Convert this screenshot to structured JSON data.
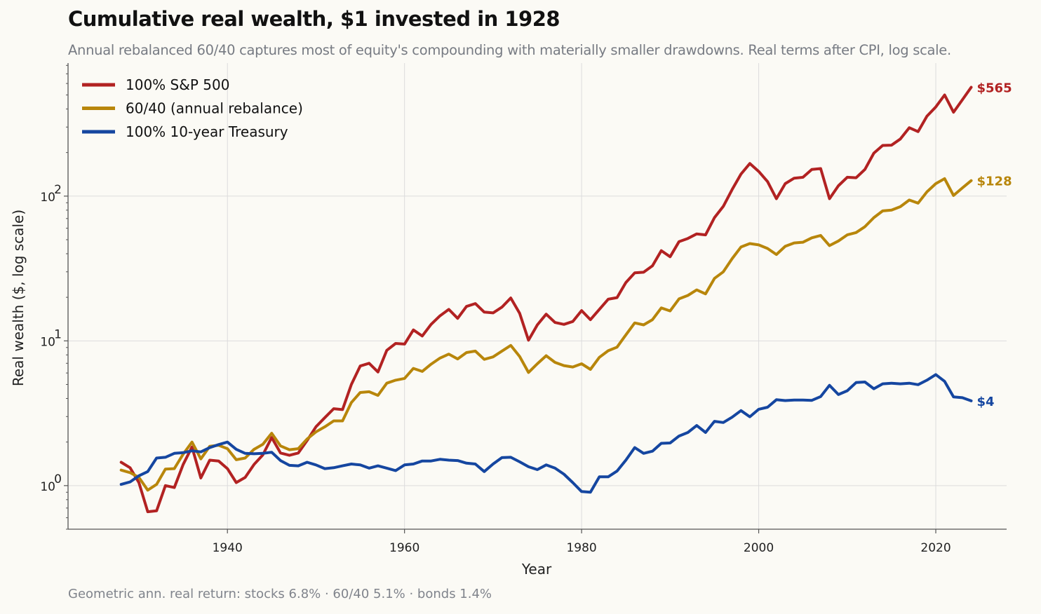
{
  "chart_data": {
    "type": "line",
    "title": "Cumulative real wealth, $1 invested in 1928",
    "subtitle": "Annual rebalanced 60/40 captures most of equity's compounding with materially smaller drawdowns. Real terms after CPI, log scale.",
    "xlabel": "Year",
    "ylabel": "Real wealth ($, log scale)",
    "footnote": "Geometric ann. real return: stocks 6.8%  ·  60/40 5.1%  ·  bonds 1.4%",
    "y_scale": "log",
    "xlim": [
      1922,
      2028
    ],
    "ylim": [
      0.5,
      830
    ],
    "x_ticks": [
      1940,
      1960,
      1980,
      2000,
      2020
    ],
    "y_ticks": [
      1,
      10,
      100
    ],
    "y_tick_labels": [
      [
        "10",
        "0"
      ],
      [
        "10",
        "1"
      ],
      [
        "10",
        "2"
      ]
    ],
    "grid": true,
    "legend_position": "top-left",
    "x": [
      1928,
      1929,
      1930,
      1931,
      1932,
      1933,
      1934,
      1935,
      1936,
      1937,
      1938,
      1939,
      1940,
      1941,
      1942,
      1943,
      1944,
      1945,
      1946,
      1947,
      1948,
      1949,
      1950,
      1951,
      1952,
      1953,
      1954,
      1955,
      1956,
      1957,
      1958,
      1959,
      1960,
      1961,
      1962,
      1963,
      1964,
      1965,
      1966,
      1967,
      1968,
      1969,
      1970,
      1971,
      1972,
      1973,
      1974,
      1975,
      1976,
      1977,
      1978,
      1979,
      1980,
      1981,
      1982,
      1983,
      1984,
      1985,
      1986,
      1987,
      1988,
      1989,
      1990,
      1991,
      1992,
      1993,
      1994,
      1995,
      1996,
      1997,
      1998,
      1999,
      2000,
      2001,
      2002,
      2003,
      2004,
      2005,
      2006,
      2007,
      2008,
      2009,
      2010,
      2011,
      2012,
      2013,
      2014,
      2015,
      2016,
      2017,
      2018,
      2019,
      2020,
      2021,
      2022,
      2023,
      2024
    ],
    "series": [
      {
        "name": "100% S&P 500",
        "color": "#b22222",
        "end_label": "$565",
        "values": [
          1.45,
          1.33,
          1.05,
          0.66,
          0.67,
          1.0,
          0.97,
          1.4,
          1.85,
          1.13,
          1.5,
          1.48,
          1.31,
          1.05,
          1.14,
          1.4,
          1.63,
          2.15,
          1.68,
          1.62,
          1.68,
          2.05,
          2.55,
          2.95,
          3.4,
          3.35,
          5.0,
          6.7,
          7.0,
          6.1,
          8.6,
          9.6,
          9.5,
          11.9,
          10.8,
          13.0,
          14.9,
          16.5,
          14.3,
          17.3,
          18.1,
          15.8,
          15.6,
          17.1,
          19.8,
          15.5,
          10.1,
          12.9,
          15.3,
          13.4,
          13.0,
          13.6,
          16.2,
          14.0,
          16.5,
          19.4,
          19.9,
          25.3,
          29.5,
          29.8,
          33.0,
          42.0,
          38.1,
          48.5,
          51.0,
          54.8,
          54.0,
          71.0,
          85.0,
          111.0,
          142.0,
          168.0,
          148.0,
          126.0,
          96.0,
          122.0,
          133.0,
          135.0,
          153.0,
          155.0,
          96.0,
          118.0,
          135.0,
          134.0,
          153.0,
          198.0,
          224.0,
          225.0,
          248.0,
          297.0,
          279.0,
          357.0,
          413.0,
          500.0,
          380.0,
          463.0,
          565.0
        ]
      },
      {
        "name": "60/40 (annual rebalance)",
        "color": "#b8860b",
        "end_label": "$128",
        "values": [
          1.28,
          1.23,
          1.14,
          0.93,
          1.02,
          1.3,
          1.31,
          1.65,
          2.0,
          1.53,
          1.87,
          1.9,
          1.8,
          1.51,
          1.55,
          1.78,
          1.93,
          2.3,
          1.88,
          1.77,
          1.8,
          2.1,
          2.35,
          2.55,
          2.8,
          2.8,
          3.75,
          4.4,
          4.45,
          4.2,
          5.1,
          5.35,
          5.5,
          6.45,
          6.15,
          6.9,
          7.6,
          8.1,
          7.5,
          8.3,
          8.5,
          7.45,
          7.75,
          8.5,
          9.3,
          7.8,
          6.05,
          6.95,
          7.9,
          7.1,
          6.75,
          6.6,
          6.95,
          6.35,
          7.7,
          8.55,
          9.05,
          11.0,
          13.3,
          12.9,
          14.0,
          16.9,
          16.1,
          19.5,
          20.6,
          22.5,
          21.1,
          27.0,
          30.0,
          37.0,
          44.5,
          47.0,
          46.0,
          43.5,
          39.5,
          45.0,
          47.5,
          48.0,
          51.5,
          53.5,
          45.5,
          49.0,
          54.0,
          56.0,
          61.5,
          71.0,
          79.0,
          80.0,
          84.5,
          94.0,
          89.5,
          107.0,
          122.0,
          132.0,
          101.0,
          114.0,
          128.0
        ]
      },
      {
        "name": "100% 10-year Treasury",
        "color": "#1546a0",
        "end_label": "$4",
        "values": [
          1.02,
          1.06,
          1.17,
          1.25,
          1.55,
          1.57,
          1.67,
          1.69,
          1.74,
          1.71,
          1.83,
          1.92,
          2.0,
          1.78,
          1.67,
          1.66,
          1.67,
          1.7,
          1.49,
          1.38,
          1.37,
          1.45,
          1.39,
          1.31,
          1.33,
          1.37,
          1.41,
          1.39,
          1.32,
          1.37,
          1.32,
          1.27,
          1.39,
          1.41,
          1.48,
          1.48,
          1.52,
          1.5,
          1.49,
          1.43,
          1.41,
          1.25,
          1.41,
          1.56,
          1.57,
          1.46,
          1.35,
          1.29,
          1.39,
          1.32,
          1.2,
          1.05,
          0.91,
          0.9,
          1.15,
          1.15,
          1.26,
          1.5,
          1.83,
          1.67,
          1.73,
          1.96,
          1.97,
          2.2,
          2.33,
          2.6,
          2.33,
          2.78,
          2.73,
          2.97,
          3.3,
          2.99,
          3.37,
          3.48,
          3.92,
          3.87,
          3.9,
          3.9,
          3.88,
          4.12,
          4.93,
          4.26,
          4.52,
          5.15,
          5.2,
          4.67,
          5.05,
          5.1,
          5.05,
          5.1,
          4.98,
          5.35,
          5.85,
          5.25,
          4.1,
          4.05,
          3.85
        ]
      }
    ]
  }
}
